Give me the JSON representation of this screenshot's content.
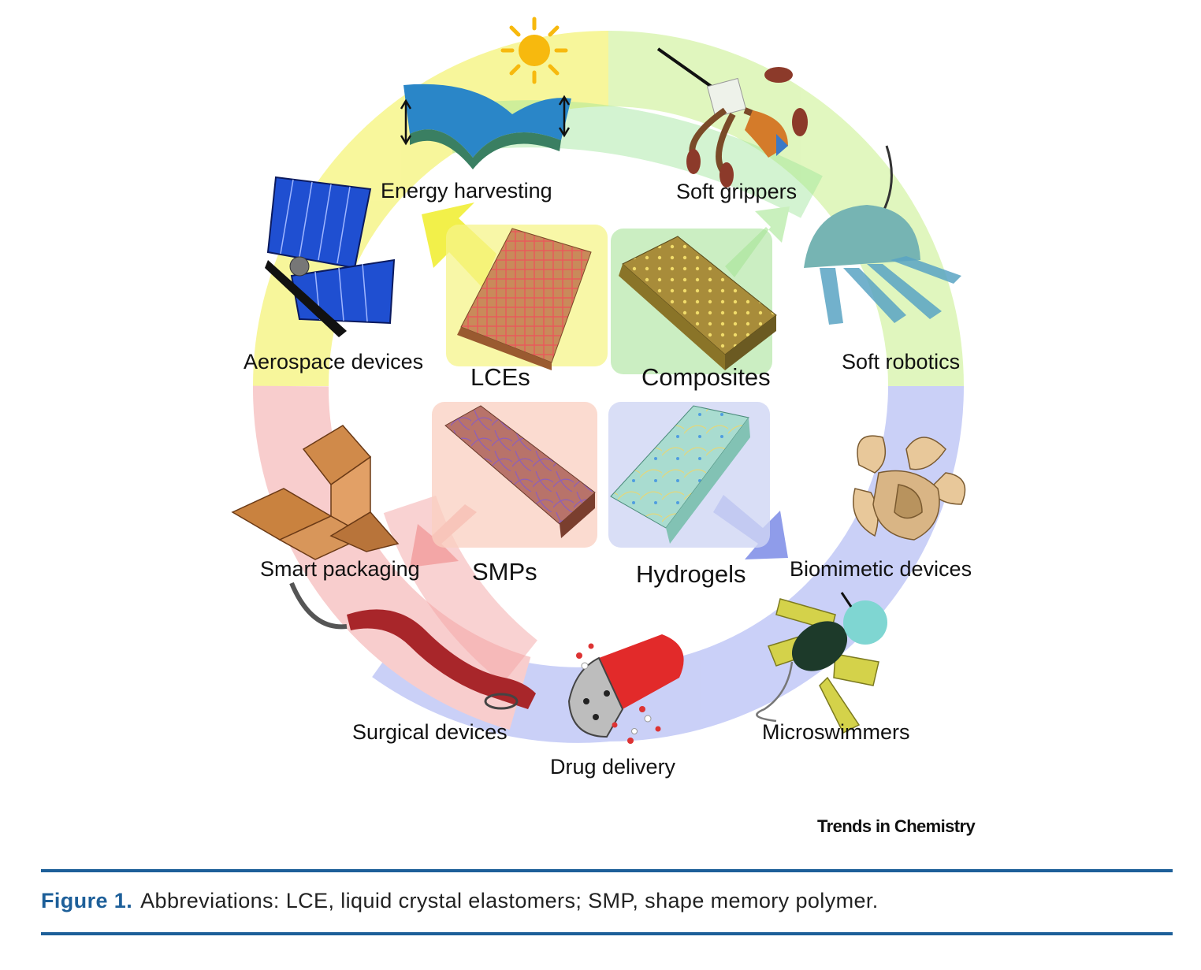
{
  "diagram": {
    "materials": [
      {
        "id": "lce",
        "label": "LCEs"
      },
      {
        "id": "composites",
        "label": "Composites"
      },
      {
        "id": "smp",
        "label": "SMPs"
      },
      {
        "id": "hydrogels",
        "label": "Hydrogels"
      }
    ],
    "applications": [
      {
        "id": "energy",
        "label": "Energy harvesting"
      },
      {
        "id": "grippers",
        "label": "Soft grippers"
      },
      {
        "id": "robotics",
        "label": "Soft robotics"
      },
      {
        "id": "biomimetic",
        "label": "Biomimetic devices"
      },
      {
        "id": "microswimmers",
        "label": "Microswimmers"
      },
      {
        "id": "drug",
        "label": "Drug delivery"
      },
      {
        "id": "surgical",
        "label": "Surgical devices"
      },
      {
        "id": "packaging",
        "label": "Smart packaging"
      },
      {
        "id": "aerospace",
        "label": "Aerospace devices"
      }
    ],
    "credit": "Trends in Chemistry",
    "colors": {
      "lce": "#f2f04a",
      "composites": "#a9e39a",
      "smp": "#f3a6a6",
      "hydrogels": "#9faaf2"
    }
  },
  "caption": {
    "figure_label": "Figure 1.",
    "text": "Abbreviations: LCE, liquid crystal elastomers; SMP, shape memory polymer."
  }
}
